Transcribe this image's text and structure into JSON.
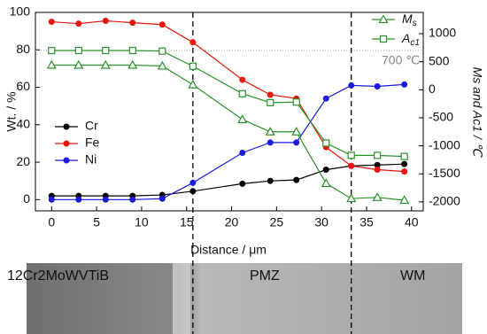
{
  "chart_data": {
    "type": "line",
    "xlabel": "Distance / μm",
    "ylabel": "Wt. / %",
    "y2label": "Ms and Ac1 / ℃",
    "x": [
      0,
      3,
      6,
      9,
      12.3,
      15.7,
      21.2,
      24.3,
      27.2,
      30.5,
      33.3,
      36.2,
      39.2
    ],
    "series": [
      {
        "name": "Cr",
        "color": "#000000",
        "marker": "circle",
        "values": [
          2,
          2,
          2,
          2,
          2.5,
          4.5,
          8.5,
          10,
          10.5,
          16,
          18,
          18.5,
          19
        ]
      },
      {
        "name": "Fe",
        "color": "#e8160c",
        "marker": "circle",
        "values": [
          95,
          94,
          95.5,
          94.5,
          93.5,
          84,
          64,
          56,
          54,
          28,
          18,
          16,
          15
        ]
      },
      {
        "name": "Ni",
        "color": "#1a1ae0",
        "marker": "circle",
        "values": [
          0,
          0,
          0,
          0,
          0.5,
          9,
          25,
          30.5,
          30.5,
          54,
          61,
          60.5,
          61.5
        ]
      },
      {
        "name": "Ms",
        "color": "#2a922a",
        "marker": "triangle",
        "axis": "y2",
        "values": [
          440,
          440,
          440,
          440,
          425,
          90,
          -530,
          -750,
          -750,
          -1670,
          -1940,
          -1920,
          -1970
        ]
      },
      {
        "name": "Ac1",
        "color": "#2a922a",
        "marker": "square",
        "axis": "y2",
        "values": [
          700,
          700,
          700,
          700,
          690,
          420,
          -70,
          -230,
          -220,
          -950,
          -1170,
          -1170,
          -1190
        ]
      }
    ],
    "xlim": [
      -1.8,
      41.3
    ],
    "xticks": [
      0,
      5,
      10,
      15,
      20,
      25,
      30,
      35,
      40
    ],
    "ylim": [
      -6,
      100
    ],
    "yticks": [
      0,
      20,
      40,
      60,
      80,
      100
    ],
    "y2lim": [
      -2160,
      1380
    ],
    "y2ticks": [
      -2000,
      -1500,
      -1000,
      -500,
      0,
      500,
      1000
    ],
    "reference_line": {
      "value": 700,
      "label": "700 ℃"
    },
    "vertical_lines": [
      15.7,
      33.3
    ]
  },
  "micrograph": {
    "labels": [
      "12Cr2MoWVTiB",
      "PMZ",
      "WM"
    ]
  }
}
